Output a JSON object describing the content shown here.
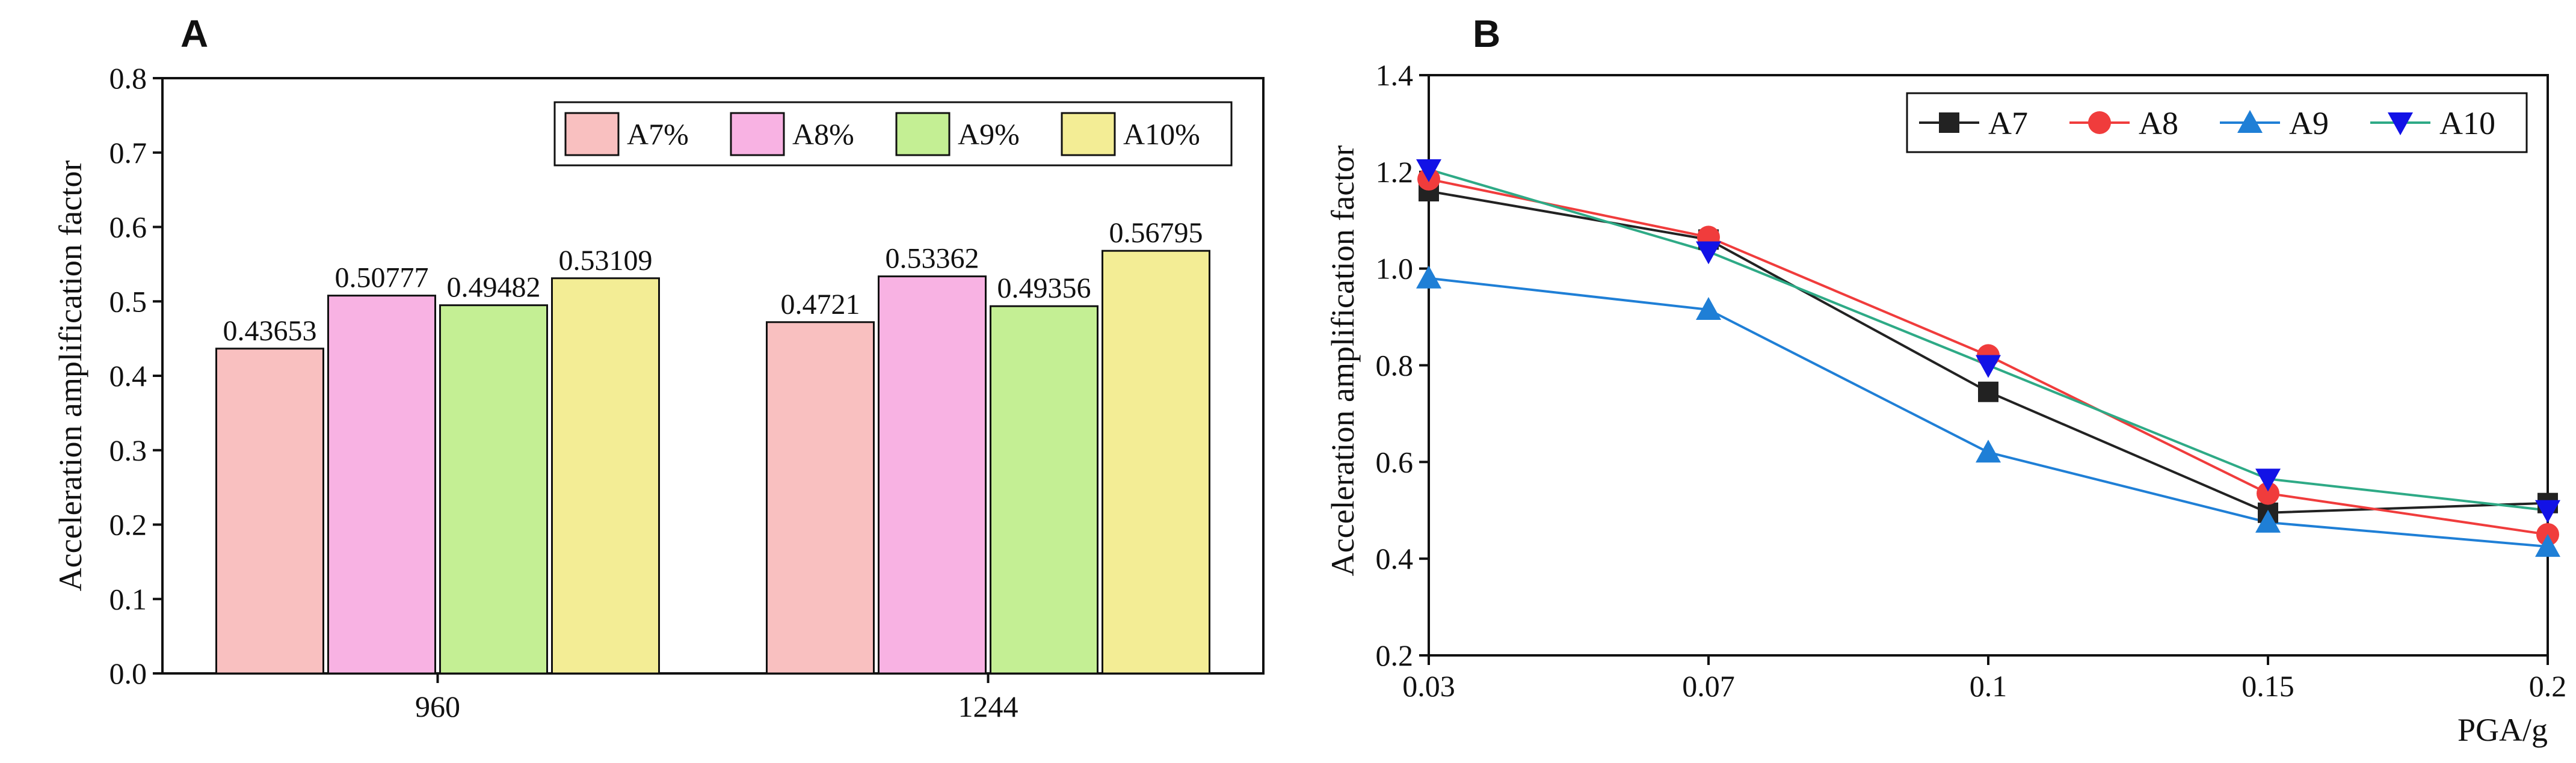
{
  "chart_data": [
    {
      "panel_label": "A",
      "type": "bar",
      "categories": [
        "960",
        "1244"
      ],
      "series": [
        {
          "name": "A7%",
          "values": [
            0.43653,
            0.4721
          ],
          "value_labels": [
            "0.43653",
            "0.4721"
          ],
          "color": "#f9c0c0"
        },
        {
          "name": "A8%",
          "values": [
            0.50777,
            0.53362
          ],
          "value_labels": [
            "0.50777",
            "0.53362"
          ],
          "color": "#f8b2e3"
        },
        {
          "name": "A9%",
          "values": [
            0.49482,
            0.49356
          ],
          "value_labels": [
            "0.49482",
            "0.49356"
          ],
          "color": "#c4ef94"
        },
        {
          "name": "A10%",
          "values": [
            0.53109,
            0.56795
          ],
          "value_labels": [
            "0.53109",
            "0.56795"
          ],
          "color": "#f3ed95"
        }
      ],
      "title": "",
      "xlabel": "",
      "ylabel": "Acceleration amplification factor",
      "ylim": [
        0,
        0.8
      ],
      "yticks": [
        "0.0",
        "0.1",
        "0.2",
        "0.3",
        "0.4",
        "0.5",
        "0.6",
        "0.7",
        "0.8"
      ],
      "legend_position": "top-right",
      "grid": false
    },
    {
      "panel_label": "B",
      "type": "line",
      "x": [
        0.03,
        0.07,
        0.1,
        0.15,
        0.2
      ],
      "xtick_labels": [
        "0.03",
        "0.07",
        "0.1",
        "0.15",
        "0.2"
      ],
      "series": [
        {
          "name": "A7",
          "values": [
            1.16,
            1.06,
            0.745,
            0.495,
            0.515
          ],
          "color": "#222222",
          "marker": "square"
        },
        {
          "name": "A8",
          "values": [
            1.185,
            1.065,
            0.82,
            0.535,
            0.45
          ],
          "color": "#f03c3c",
          "marker": "circle"
        },
        {
          "name": "A9",
          "values": [
            0.98,
            0.915,
            0.62,
            0.475,
            0.425
          ],
          "color": "#1f7fd6",
          "marker": "triangle-up"
        },
        {
          "name": "A10",
          "values": [
            1.205,
            1.035,
            0.8,
            0.565,
            0.5
          ],
          "color": "#2eaa86",
          "marker_color": "#1212e6",
          "marker": "triangle-down"
        }
      ],
      "title": "",
      "xlabel": "PGA/g",
      "ylabel": "Acceleration amplification factor",
      "ylim": [
        0.2,
        1.4
      ],
      "yticks": [
        "0.2",
        "0.4",
        "0.6",
        "0.8",
        "1.0",
        "1.2",
        "1.4"
      ],
      "legend_position": "top-right",
      "grid": false
    }
  ]
}
